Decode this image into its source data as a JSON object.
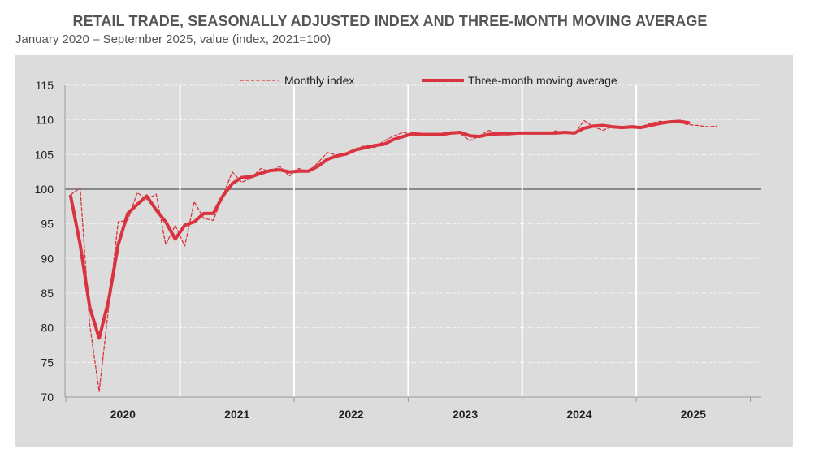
{
  "chart_data": {
    "type": "line",
    "title": "RETAIL TRADE, SEASONALLY ADJUSTED INDEX AND THREE-MONTH MOVING AVERAGE",
    "subtitle": "January 2020 – September 2025, value (index, 2021=100)",
    "xlabel": "",
    "ylabel": "",
    "ylim": [
      70,
      115
    ],
    "yticks": [
      "70",
      "75",
      "80",
      "85",
      "90",
      "95",
      "100",
      "105",
      "110",
      "115"
    ],
    "year_labels": [
      "2020",
      "2021",
      "2022",
      "2023",
      "2024",
      "2025"
    ],
    "reference_line": 100,
    "legend_position": "top-center",
    "series": [
      {
        "name": "Monthly index",
        "style": "dashed",
        "color": "#d9333f",
        "values": [
          99.2,
          100.2,
          80.5,
          70.8,
          83.0,
          95.3,
          95.5,
          99.5,
          98.5,
          99.3,
          92.0,
          94.8,
          91.8,
          98.2,
          95.8,
          95.5,
          99.0,
          102.5,
          101.0,
          101.6,
          103.0,
          102.5,
          103.3,
          101.9,
          103.0,
          102.5,
          103.8,
          105.3,
          104.9,
          105.2,
          105.8,
          106.3,
          106.0,
          107.0,
          107.7,
          108.2,
          107.8,
          108.0,
          107.9,
          108.0,
          108.3,
          108.0,
          107.0,
          107.7,
          108.5,
          107.8,
          108.2,
          108.1,
          108.0,
          108.2,
          108.0,
          108.4,
          108.2,
          108.0,
          109.9,
          109.0,
          108.5,
          109.1,
          108.8,
          109.2,
          109.0,
          109.5,
          109.8,
          109.7,
          109.6,
          109.3,
          109.2,
          109.0,
          109.1
        ]
      },
      {
        "name": "Three-month moving average",
        "style": "solid",
        "color": "#d9333f",
        "values": [
          99.0,
          92.0,
          83.0,
          78.5,
          84.0,
          92.0,
          96.5,
          97.8,
          99.0,
          97.0,
          95.3,
          92.8,
          94.8,
          95.3,
          96.5,
          96.5,
          99.0,
          100.8,
          101.7,
          101.8,
          102.3,
          102.7,
          102.8,
          102.5,
          102.6,
          102.6,
          103.3,
          104.3,
          104.8,
          105.1,
          105.7,
          106.0,
          106.3,
          106.5,
          107.2,
          107.6,
          108.0,
          107.9,
          107.9,
          107.9,
          108.1,
          108.2,
          107.7,
          107.6,
          107.9,
          108.0,
          108.0,
          108.1,
          108.1,
          108.1,
          108.1,
          108.1,
          108.2,
          108.1,
          108.8,
          109.1,
          109.2,
          109.0,
          108.9,
          109.0,
          108.9,
          109.2,
          109.5,
          109.7,
          109.8,
          109.6
        ]
      }
    ]
  }
}
